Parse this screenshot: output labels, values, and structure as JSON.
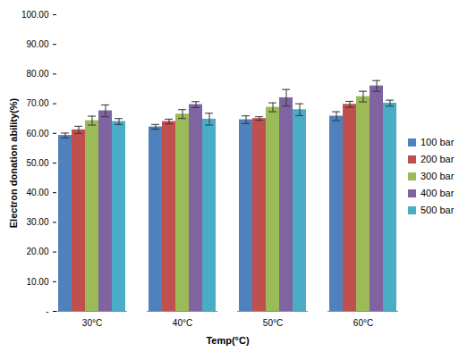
{
  "chart_data": {
    "type": "bar",
    "xlabel": "Temp(°C)",
    "ylabel": "Electron donation ability(%)",
    "categories": [
      "30°C",
      "40°C",
      "50°C",
      "60°C"
    ],
    "series": [
      {
        "name": "100 bar",
        "color": "#4f81bd",
        "values": [
          59.3,
          62.2,
          64.6,
          65.8
        ],
        "errors": [
          0.8,
          0.8,
          1.3,
          1.5
        ]
      },
      {
        "name": "200 bar",
        "color": "#c0504d",
        "values": [
          61.2,
          64.0,
          65.0,
          69.8
        ],
        "errors": [
          1.2,
          0.8,
          0.6,
          1.0
        ]
      },
      {
        "name": "300 bar",
        "color": "#9bbb59",
        "values": [
          64.3,
          66.5,
          68.8,
          72.4
        ],
        "errors": [
          1.5,
          1.5,
          1.5,
          1.8
        ]
      },
      {
        "name": "400 bar",
        "color": "#8064a2",
        "values": [
          67.6,
          69.7,
          72.0,
          76.0
        ],
        "errors": [
          2.0,
          1.0,
          2.8,
          1.8
        ]
      },
      {
        "name": "500 bar",
        "color": "#4bacc6",
        "values": [
          64.0,
          64.8,
          68.0,
          70.2
        ],
        "errors": [
          1.0,
          2.0,
          2.0,
          1.0
        ]
      }
    ],
    "ylim": [
      0,
      100
    ],
    "yticks": [
      {
        "value": 0,
        "label": "-"
      },
      {
        "value": 10,
        "label": "10.00"
      },
      {
        "value": 20,
        "label": "20.00"
      },
      {
        "value": 30,
        "label": "30.00"
      },
      {
        "value": 40,
        "label": "40.00"
      },
      {
        "value": 50,
        "label": "50.00"
      },
      {
        "value": 60,
        "label": "60.00"
      },
      {
        "value": 70,
        "label": "70.00"
      },
      {
        "value": 80,
        "label": "80.00"
      },
      {
        "value": 90,
        "label": "90.00"
      },
      {
        "value": 100,
        "label": "100.00"
      }
    ],
    "legend": "right"
  }
}
